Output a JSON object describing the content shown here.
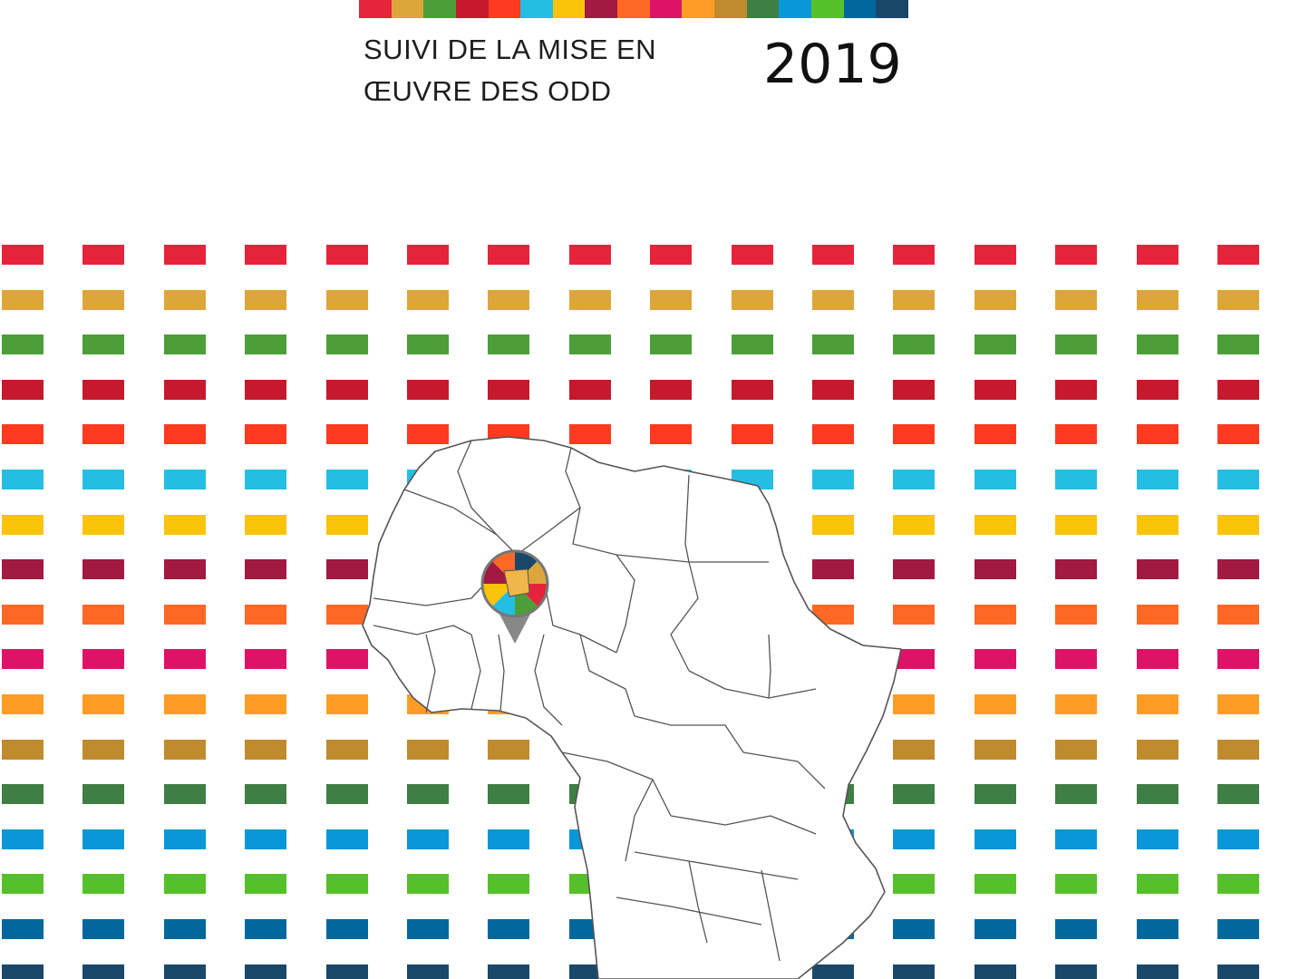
{
  "header": {
    "title_line1": "SUIVI DE LA MISE EN",
    "title_line2": "ŒUVRE DES ODD",
    "year": "2019"
  },
  "sdg_colors": [
    "#e5243b",
    "#dda63a",
    "#4c9f38",
    "#c5192d",
    "#ff3a21",
    "#26bde2",
    "#fcc30b",
    "#a21942",
    "#fd6925",
    "#dd1367",
    "#fd9d24",
    "#bf8b2e",
    "#3f7e44",
    "#0a97d9",
    "#56c02b",
    "#00689d",
    "#19486a"
  ],
  "map": {
    "region": "africa-map",
    "fill": "#ffffff",
    "stroke": "#555555",
    "pin_colors": [
      "#e5243b",
      "#4c9f38",
      "#26bde2",
      "#fcc30b",
      "#a21942",
      "#fd6925",
      "#19486a",
      "#dda63a"
    ]
  }
}
